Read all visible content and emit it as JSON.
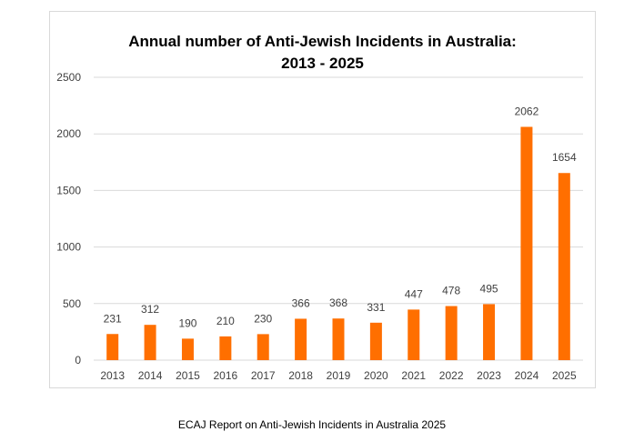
{
  "chart_data": {
    "type": "bar",
    "title_lines": [
      "Annual number of Anti-Jewish Incidents in Australia:",
      "2013 - 2025"
    ],
    "categories": [
      "2013",
      "2014",
      "2015",
      "2016",
      "2017",
      "2018",
      "2019",
      "2020",
      "2021",
      "2022",
      "2023",
      "2024",
      "2025"
    ],
    "values": [
      231,
      312,
      190,
      210,
      230,
      366,
      368,
      331,
      447,
      478,
      495,
      2062,
      1654
    ],
    "ylim": [
      0,
      2500
    ],
    "yticks": [
      0,
      500,
      1000,
      1500,
      2000,
      2500
    ],
    "grid": true,
    "legend": "none",
    "bar_color": "#ff6f00",
    "grid_color": "#d9d9d9",
    "label_color": "#404040"
  },
  "caption": "ECAJ Report on Anti-Jewish Incidents in Australia 2025"
}
